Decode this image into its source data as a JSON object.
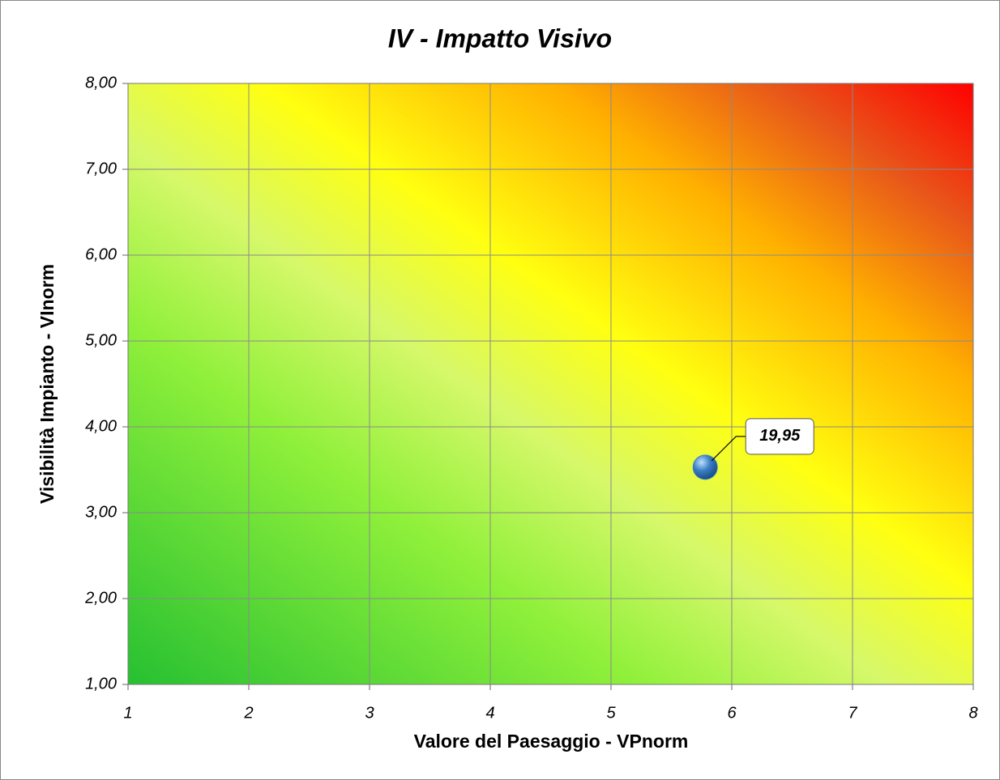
{
  "chart_data": {
    "type": "scatter",
    "title": "IV - Impatto Visivo",
    "xlabel": "Valore del Paesaggio - VPnorm",
    "ylabel": "Visibilità Impianto - VInorm",
    "series": [
      {
        "color": "#3b7fc4",
        "x": [
          5.78
        ],
        "values": [
          3.53
        ],
        "labels": [
          "19,95"
        ]
      }
    ],
    "xlim": [
      1,
      8
    ],
    "xticks": [
      1,
      2,
      3,
      4,
      5,
      6,
      7,
      8
    ],
    "ylim": [
      1,
      8
    ],
    "yticks": [
      {
        "value": 1,
        "label": "1,00"
      },
      {
        "value": 2,
        "label": "2,00"
      },
      {
        "value": 3,
        "label": "3,00"
      },
      {
        "value": 4,
        "label": "4,00"
      },
      {
        "value": 5,
        "label": "5,00"
      },
      {
        "value": 6,
        "label": "6,00"
      },
      {
        "value": 7,
        "label": "7,00"
      },
      {
        "value": 8,
        "label": "8,00"
      }
    ],
    "grid": true
  }
}
